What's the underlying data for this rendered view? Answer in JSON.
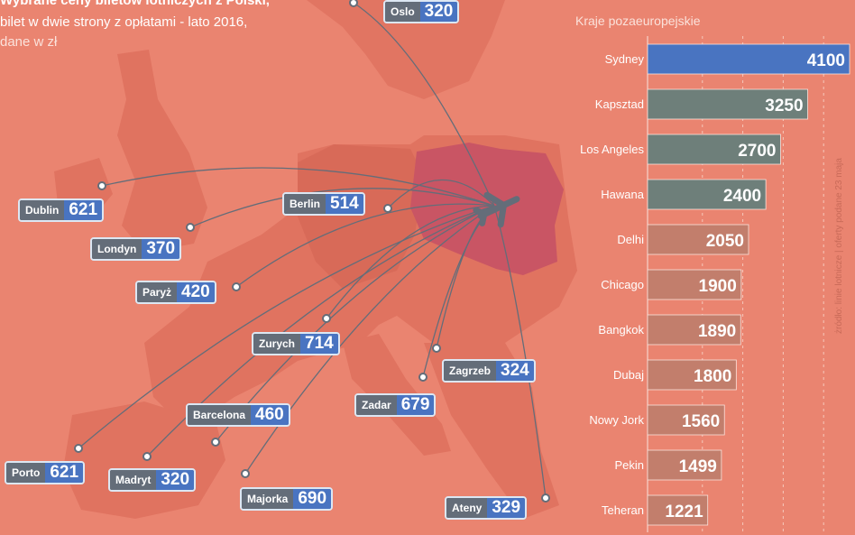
{
  "title": {
    "line1": "Wybrane ceny biletów lotniczych z Polski,",
    "line2": "bilet w dwie strony z opłatami - lato 2016,",
    "line3": "dane w zł"
  },
  "map": {
    "destinations": [
      {
        "name": "Oslo",
        "price": "320"
      },
      {
        "name": "Dublin",
        "price": "621"
      },
      {
        "name": "Berlin",
        "price": "514"
      },
      {
        "name": "Londyn",
        "price": "370"
      },
      {
        "name": "Paryż",
        "price": "420"
      },
      {
        "name": "Zurych",
        "price": "714"
      },
      {
        "name": "Zagrzeb",
        "price": "324"
      },
      {
        "name": "Zadar",
        "price": "679"
      },
      {
        "name": "Barcelona",
        "price": "460"
      },
      {
        "name": "Porto",
        "price": "621"
      },
      {
        "name": "Madryt",
        "price": "320"
      },
      {
        "name": "Majorka",
        "price": "690"
      },
      {
        "name": "Ateny",
        "price": "329"
      }
    ]
  },
  "chart_data": {
    "type": "bar",
    "orientation": "horizontal",
    "title": "Kraje pozaeuropejskie",
    "categories": [
      "Sydney",
      "Kapsztad",
      "Los Angeles",
      "Hawana",
      "Delhi",
      "Chicago",
      "Bangkok",
      "Dubaj",
      "Nowy Jork",
      "Pekin",
      "Teheran"
    ],
    "values": [
      4100,
      3250,
      2700,
      2400,
      2050,
      1900,
      1890,
      1800,
      1560,
      1499,
      1221
    ],
    "xlim": [
      0,
      4100
    ],
    "grid": "dashed vertical",
    "colors": {
      "highlight": "#4974c1",
      "bar": "#6e7f7a",
      "bar_faded": "#c27e6c"
    }
  },
  "source": "żródło: linie lotnicze  |  oferty podane 23 maja"
}
